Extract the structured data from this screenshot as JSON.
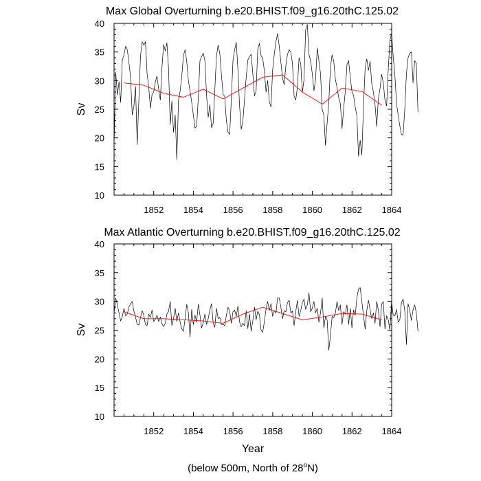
{
  "page": {
    "xlabel": "Year",
    "footnote_prefix": "(below 500m, North of 28",
    "footnote_deg": "o",
    "footnote_suffix": "N)"
  },
  "colors": {
    "monthly": "#000000",
    "annual": "#ff0000",
    "frame": "#000000"
  },
  "chart_data": [
    {
      "type": "line",
      "title": "Max Global Overturning b.e20.BHIST.f09_g16.20thC.125.02",
      "xlabel": "",
      "ylabel": "Sv",
      "xlim": [
        1850.0,
        1864.0
      ],
      "ylim": [
        10,
        40
      ],
      "xticks": [
        1852,
        1854,
        1856,
        1858,
        1860,
        1862,
        1864
      ],
      "yticks": [
        10,
        15,
        20,
        25,
        30,
        35,
        40
      ],
      "series": [
        {
          "name": "monthly",
          "x_start": 1850.0,
          "x_step": 0.0833,
          "values": [
            18.6,
            31.5,
            27.5,
            29.8,
            26.2,
            33.6,
            34.5,
            36.0,
            35.4,
            33.2,
            30.5,
            24.0,
            25.5,
            29.0,
            18.8,
            26.5,
            34.3,
            36.8,
            36.2,
            36.8,
            31.2,
            28.8,
            25.2,
            27.6,
            28.0,
            29.8,
            30.8,
            28.5,
            26.6,
            32.3,
            36.3,
            35.2,
            36.6,
            32.0,
            22.3,
            26.4,
            21.0,
            24.0,
            16.2,
            26.5,
            28.2,
            30.8,
            34.4,
            35.4,
            33.3,
            30.0,
            28.2,
            26.2,
            24.0,
            21.7,
            22.0,
            27.0,
            33.5,
            34.2,
            34.8,
            33.5,
            27.4,
            23.6,
            25.8,
            21.8,
            22.5,
            28.4,
            34.3,
            36.2,
            34.8,
            31.0,
            27.6,
            27.2,
            23.0,
            21.0,
            20.6,
            26.8,
            33.5,
            35.4,
            36.7,
            31.8,
            25.5,
            21.5,
            23.0,
            26.8,
            30.6,
            33.6,
            34.2,
            34.6,
            31.2,
            27.3,
            28.2,
            35.5,
            36.5,
            34.4,
            33.9,
            31.7,
            28.0,
            30.0,
            26.3,
            25.4,
            31.8,
            34.6,
            36.8,
            38.2,
            36.0,
            33.2,
            30.4,
            29.3,
            32.6,
            34.6,
            35.4,
            35.0,
            33.0,
            27.3,
            26.6,
            28.9,
            34.0,
            33.0,
            28.0,
            30.2,
            38.9,
            39.8,
            34.6,
            33.4,
            31.2,
            28.2,
            30.2,
            35.7,
            33.5,
            31.2,
            25.0,
            24.0,
            18.7,
            22.6,
            26.2,
            32.3,
            34.5,
            33.4,
            30.2,
            28.8,
            27.0,
            26.0,
            21.6,
            25.1,
            28.2,
            32.8,
            33.5,
            30.6,
            28.1,
            27.4,
            25.4,
            23.8,
            16.8,
            19.6,
            17.0,
            25.4,
            32.2,
            33.8,
            31.8,
            33.4,
            29.5,
            28.0,
            25.8,
            22.0,
            26.8,
            28.6,
            31.1,
            29.6,
            26.6,
            25.6,
            32.0,
            37.0,
            38.3,
            34.2,
            31.0,
            26.0,
            24.0,
            22.1,
            20.6,
            20.5,
            25.0,
            31.2,
            34.0,
            34.8,
            35.0,
            29.6,
            33.5,
            33.0,
            24.5
          ]
        },
        {
          "name": "annual",
          "x": [
            1850.5,
            1851.5,
            1852.5,
            1853.5,
            1854.5,
            1855.5,
            1856.5,
            1857.5,
            1858.5,
            1859.5,
            1860.5,
            1861.5,
            1862.5,
            1863.5
          ],
          "values": [
            29.6,
            29.2,
            27.8,
            27.1,
            28.5,
            26.8,
            28.7,
            30.6,
            31.0,
            28.0,
            25.9,
            28.7,
            28.1,
            25.7
          ]
        }
      ]
    },
    {
      "type": "line",
      "title": "Max Atlantic Overturning b.e20.BHIST.f09_g16.20thC.125.02",
      "xlabel": "Year",
      "ylabel": "Sv",
      "xlim": [
        1850.0,
        1864.0
      ],
      "ylim": [
        10,
        40
      ],
      "xticks": [
        1852,
        1854,
        1856,
        1858,
        1860,
        1862,
        1864
      ],
      "yticks": [
        10,
        15,
        20,
        25,
        30,
        35,
        40
      ],
      "series": [
        {
          "name": "monthly",
          "x_start": 1850.0,
          "x_step": 0.0833,
          "values": [
            28.0,
            30.6,
            29.4,
            28.0,
            26.6,
            27.4,
            28.8,
            27.5,
            27.8,
            29.0,
            29.6,
            30.0,
            28.3,
            27.3,
            26.0,
            25.9,
            27.2,
            28.4,
            27.6,
            26.0,
            25.8,
            27.8,
            27.2,
            28.5,
            26.5,
            26.9,
            27.6,
            26.5,
            27.3,
            26.1,
            25.6,
            26.2,
            27.8,
            28.3,
            30.0,
            25.8,
            27.0,
            28.8,
            26.5,
            28.0,
            26.4,
            25.2,
            24.8,
            27.0,
            29.5,
            28.0,
            23.8,
            28.6,
            26.0,
            27.6,
            26.4,
            29.5,
            27.6,
            25.4,
            26.3,
            27.8,
            26.0,
            27.0,
            28.5,
            29.6,
            26.2,
            25.5,
            28.8,
            27.0,
            27.2,
            26.0,
            26.0,
            25.8,
            27.6,
            29.0,
            28.3,
            26.2,
            28.2,
            28.5,
            27.4,
            29.2,
            26.4,
            25.6,
            26.2,
            25.8,
            28.4,
            25.3,
            27.8,
            24.8,
            26.6,
            29.0,
            26.8,
            28.3,
            27.7,
            25.0,
            24.6,
            26.5,
            28.6,
            30.0,
            28.4,
            29.6,
            27.4,
            28.4,
            28.0,
            30.6,
            30.6,
            29.0,
            27.0,
            28.4,
            28.2,
            29.8,
            30.2,
            28.0,
            28.3,
            25.8,
            28.2,
            30.2,
            27.4,
            28.4,
            29.8,
            30.4,
            28.6,
            29.4,
            31.5,
            28.2,
            28.8,
            30.0,
            28.0,
            28.8,
            26.4,
            28.0,
            30.6,
            25.4,
            27.4,
            26.8,
            21.5,
            24.0,
            27.4,
            27.2,
            28.0,
            30.0,
            28.4,
            29.4,
            26.0,
            28.2,
            27.8,
            29.4,
            26.0,
            28.8,
            25.4,
            28.5,
            27.6,
            30.6,
            32.2,
            32.4,
            30.0,
            27.6,
            25.2,
            28.4,
            30.2,
            28.5,
            27.0,
            28.0,
            26.2,
            30.0,
            28.5,
            25.6,
            29.5,
            30.0,
            25.2,
            27.5,
            26.8,
            25.0,
            30.0,
            27.6,
            27.5,
            28.6,
            26.4,
            26.8,
            29.8,
            30.4,
            28.4,
            22.5,
            29.6,
            28.5,
            26.7,
            28.5,
            29.4,
            28.0,
            24.8
          ]
        },
        {
          "name": "annual",
          "x": [
            1850.5,
            1851.5,
            1852.5,
            1853.5,
            1854.5,
            1855.5,
            1856.5,
            1857.5,
            1858.5,
            1859.5,
            1860.5,
            1861.5,
            1862.5,
            1863.5
          ],
          "values": [
            28.2,
            27.0,
            27.0,
            26.8,
            26.6,
            26.2,
            27.8,
            29.0,
            27.9,
            26.8,
            27.3,
            27.9,
            27.8,
            26.8
          ]
        }
      ]
    }
  ]
}
